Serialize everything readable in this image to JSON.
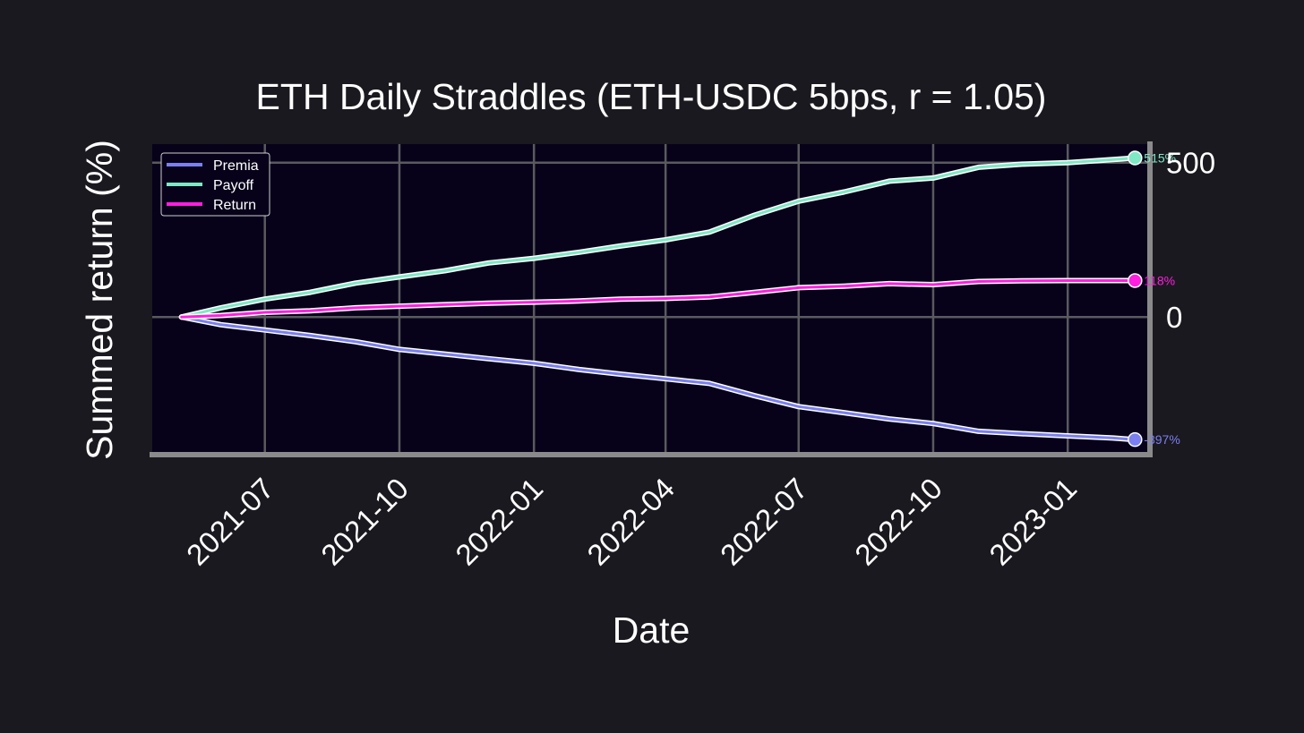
{
  "chart_data": {
    "type": "line",
    "title": "ETH Daily Straddles (ETH-USDC 5bps, r = 1.05)",
    "xlabel": "Date",
    "ylabel": "Summed return (%)",
    "x_ticks": [
      "2021-07",
      "2021-10",
      "2022-01",
      "2022-04",
      "2022-07",
      "2022-10",
      "2023-01"
    ],
    "y_ticks": [
      "500",
      "0"
    ],
    "y_tick_values": [
      500,
      0
    ],
    "ylim": [
      -440,
      560
    ],
    "xlim": [
      "2021-04-15",
      "2023-02-25"
    ],
    "grid": true,
    "legend_position": "top-left",
    "series": [
      {
        "name": "Premia",
        "color": "#7b7ff0",
        "end_label": "-397%",
        "points": [
          [
            "2021-05-05",
            0
          ],
          [
            "2021-06-01",
            -25
          ],
          [
            "2021-07-01",
            -42
          ],
          [
            "2021-08-01",
            -60
          ],
          [
            "2021-09-01",
            -80
          ],
          [
            "2021-10-01",
            -105
          ],
          [
            "2021-11-01",
            -120
          ],
          [
            "2021-12-01",
            -135
          ],
          [
            "2022-01-01",
            -150
          ],
          [
            "2022-02-01",
            -170
          ],
          [
            "2022-03-01",
            -185
          ],
          [
            "2022-04-01",
            -200
          ],
          [
            "2022-05-01",
            -215
          ],
          [
            "2022-06-01",
            -255
          ],
          [
            "2022-07-01",
            -290
          ],
          [
            "2022-08-01",
            -310
          ],
          [
            "2022-09-01",
            -330
          ],
          [
            "2022-10-01",
            -345
          ],
          [
            "2022-11-01",
            -370
          ],
          [
            "2022-12-01",
            -378
          ],
          [
            "2023-01-01",
            -385
          ],
          [
            "2023-02-01",
            -392
          ],
          [
            "2023-02-16",
            -397
          ]
        ]
      },
      {
        "name": "Payoff",
        "color": "#7fe8c4",
        "end_label": "515%",
        "points": [
          [
            "2021-05-05",
            0
          ],
          [
            "2021-06-01",
            30
          ],
          [
            "2021-07-01",
            58
          ],
          [
            "2021-08-01",
            80
          ],
          [
            "2021-09-01",
            110
          ],
          [
            "2021-10-01",
            130
          ],
          [
            "2021-11-01",
            150
          ],
          [
            "2021-12-01",
            175
          ],
          [
            "2022-01-01",
            190
          ],
          [
            "2022-02-01",
            210
          ],
          [
            "2022-03-01",
            230
          ],
          [
            "2022-04-01",
            250
          ],
          [
            "2022-05-01",
            275
          ],
          [
            "2022-06-01",
            330
          ],
          [
            "2022-07-01",
            375
          ],
          [
            "2022-08-01",
            405
          ],
          [
            "2022-09-01",
            440
          ],
          [
            "2022-10-01",
            450
          ],
          [
            "2022-11-01",
            485
          ],
          [
            "2022-12-01",
            495
          ],
          [
            "2023-01-01",
            500
          ],
          [
            "2023-02-01",
            510
          ],
          [
            "2023-02-16",
            515
          ]
        ]
      },
      {
        "name": "Return",
        "color": "#ff1fe0",
        "end_label": "118%",
        "points": [
          [
            "2021-05-05",
            0
          ],
          [
            "2021-06-01",
            5
          ],
          [
            "2021-07-01",
            15
          ],
          [
            "2021-08-01",
            20
          ],
          [
            "2021-09-01",
            30
          ],
          [
            "2021-10-01",
            35
          ],
          [
            "2021-11-01",
            40
          ],
          [
            "2021-12-01",
            45
          ],
          [
            "2022-01-01",
            48
          ],
          [
            "2022-02-01",
            52
          ],
          [
            "2022-03-01",
            58
          ],
          [
            "2022-04-01",
            60
          ],
          [
            "2022-05-01",
            65
          ],
          [
            "2022-06-01",
            80
          ],
          [
            "2022-07-01",
            95
          ],
          [
            "2022-08-01",
            100
          ],
          [
            "2022-09-01",
            108
          ],
          [
            "2022-10-01",
            105
          ],
          [
            "2022-11-01",
            115
          ],
          [
            "2022-12-01",
            117
          ],
          [
            "2023-01-01",
            118
          ],
          [
            "2023-02-01",
            118
          ],
          [
            "2023-02-16",
            118
          ]
        ]
      }
    ]
  },
  "colors": {
    "background": "#1a191f",
    "plot_background": "#07021a",
    "grid": "#5a5a5e",
    "spine": "#8a8a8a"
  }
}
